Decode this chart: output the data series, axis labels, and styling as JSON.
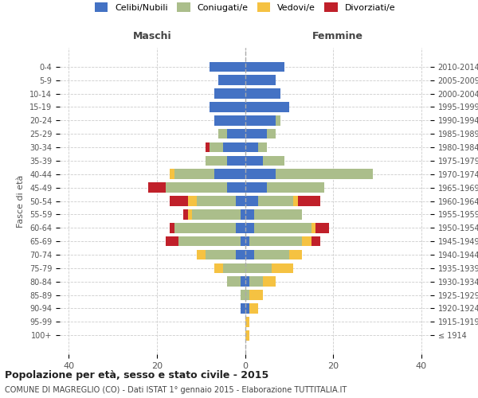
{
  "age_groups": [
    "100+",
    "95-99",
    "90-94",
    "85-89",
    "80-84",
    "75-79",
    "70-74",
    "65-69",
    "60-64",
    "55-59",
    "50-54",
    "45-49",
    "40-44",
    "35-39",
    "30-34",
    "25-29",
    "20-24",
    "15-19",
    "10-14",
    "5-9",
    "0-4"
  ],
  "anni_nascita": [
    "≤ 1914",
    "1915-1919",
    "1920-1924",
    "1925-1929",
    "1930-1934",
    "1935-1939",
    "1940-1944",
    "1945-1949",
    "1950-1954",
    "1955-1959",
    "1960-1964",
    "1965-1969",
    "1970-1974",
    "1975-1979",
    "1980-1984",
    "1985-1989",
    "1990-1994",
    "1995-1999",
    "2000-2004",
    "2005-2009",
    "2010-2014"
  ],
  "maschi": {
    "celibi": [
      0,
      0,
      1,
      0,
      1,
      0,
      2,
      1,
      2,
      1,
      2,
      4,
      7,
      4,
      5,
      4,
      7,
      8,
      7,
      6,
      8
    ],
    "coniugati": [
      0,
      0,
      0,
      1,
      3,
      5,
      7,
      14,
      14,
      11,
      9,
      14,
      9,
      5,
      3,
      2,
      0,
      0,
      0,
      0,
      0
    ],
    "vedovi": [
      0,
      0,
      0,
      0,
      0,
      2,
      2,
      0,
      0,
      1,
      2,
      0,
      1,
      0,
      0,
      0,
      0,
      0,
      0,
      0,
      0
    ],
    "divorziati": [
      0,
      0,
      0,
      0,
      0,
      0,
      0,
      3,
      1,
      1,
      4,
      4,
      0,
      0,
      1,
      0,
      0,
      0,
      0,
      0,
      0
    ]
  },
  "femmine": {
    "nubili": [
      0,
      0,
      1,
      0,
      1,
      0,
      2,
      1,
      2,
      2,
      3,
      5,
      7,
      4,
      3,
      5,
      7,
      10,
      8,
      7,
      9
    ],
    "coniugate": [
      0,
      0,
      0,
      1,
      3,
      6,
      8,
      12,
      13,
      11,
      8,
      13,
      22,
      5,
      2,
      2,
      1,
      0,
      0,
      0,
      0
    ],
    "vedove": [
      1,
      1,
      2,
      3,
      3,
      5,
      3,
      2,
      1,
      0,
      1,
      0,
      0,
      0,
      0,
      0,
      0,
      0,
      0,
      0,
      0
    ],
    "divorziate": [
      0,
      0,
      0,
      0,
      0,
      0,
      0,
      2,
      3,
      0,
      5,
      0,
      0,
      0,
      0,
      0,
      0,
      0,
      0,
      0,
      0
    ]
  },
  "colors": {
    "celibi_nubili": "#4472C4",
    "coniugati": "#ABBE8B",
    "vedovi": "#F5C242",
    "divorziati": "#C0202A"
  },
  "xlim": 42,
  "title": "Popolazione per età, sesso e stato civile - 2015",
  "subtitle": "COMUNE DI MAGREGLIO (CO) - Dati ISTAT 1° gennaio 2015 - Elaborazione TUTTITALIA.IT",
  "ylabel_left": "Fasce di età",
  "header_maschi": "Maschi",
  "header_femmine": "Femmine",
  "bg_color": "#ffffff",
  "grid_color": "#cccccc"
}
